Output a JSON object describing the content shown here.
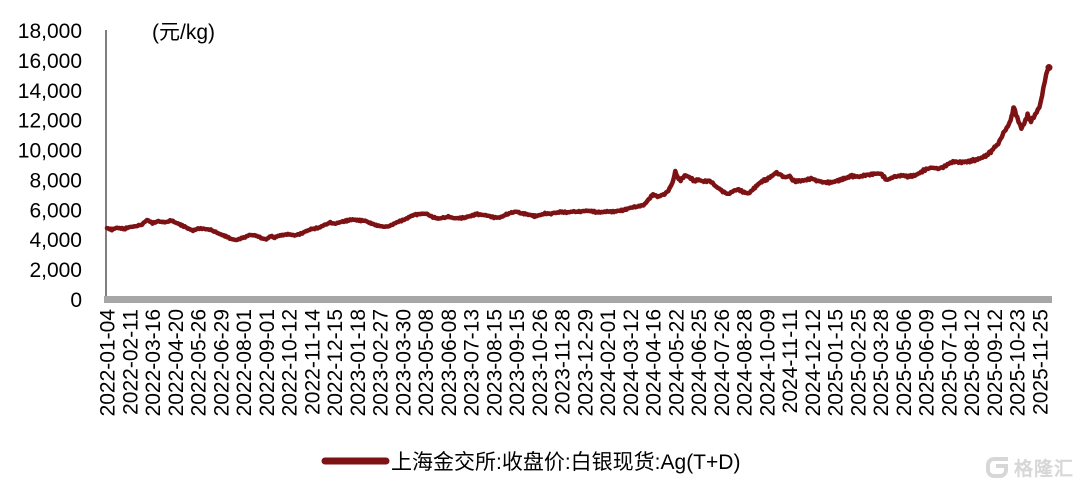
{
  "chart": {
    "unit_label": "(元/kg)",
    "legend": {
      "label": "上海金交所:收盘价:白银现货:Ag(T+D)"
    },
    "watermark_text": "格隆汇",
    "colors": {
      "series": "#7D1214",
      "axis_line": "#7f7f7f",
      "axis_bar": "#a6a6a6",
      "text": "#000000",
      "watermark": "#d7d7d7"
    }
  },
  "chart_data": {
    "type": "line",
    "title": "",
    "xlabel": "",
    "ylabel": "(元/kg)",
    "ylim": [
      0,
      18000
    ],
    "grid": false,
    "legend_position": "bottom-center",
    "y_ticks": [
      0,
      2000,
      4000,
      6000,
      8000,
      10000,
      12000,
      14000,
      16000,
      18000
    ],
    "x_tick_labels": [
      "2022-01-04",
      "2022-02-11",
      "2022-03-16",
      "2022-04-20",
      "2022-05-26",
      "2022-06-29",
      "2022-08-01",
      "2022-09-01",
      "2022-10-12",
      "2022-11-14",
      "2022-12-15",
      "2023-01-18",
      "2023-02-27",
      "2023-03-30",
      "2023-05-08",
      "2023-06-08",
      "2023-07-13",
      "2023-08-15",
      "2023-09-15",
      "2023-10-26",
      "2023-11-28",
      "2023-12-29",
      "2024-02-01",
      "2024-03-12",
      "2024-04-16",
      "2024-05-22",
      "2024-06-25",
      "2024-07-26",
      "2024-08-28",
      "2024-10-09",
      "2024-11-11",
      "2024-12-12",
      "2025-01-15",
      "2025-02-25",
      "2025-03-28",
      "2025-05-06",
      "2025-06-09",
      "2025-07-10",
      "2025-08-12",
      "2025-09-12",
      "2025-10-23",
      "2025-11-25"
    ],
    "series": [
      {
        "name": "上海金交所:收盘价:白银现货:Ag(T+D)",
        "color": "#7D1214",
        "points": [
          [
            "2022-01-04",
            4780
          ],
          [
            "2022-01-12",
            4680
          ],
          [
            "2022-01-21",
            4800
          ],
          [
            "2022-02-01",
            4720
          ],
          [
            "2022-02-11",
            4840
          ],
          [
            "2022-02-22",
            4940
          ],
          [
            "2022-03-01",
            5030
          ],
          [
            "2022-03-08",
            5320
          ],
          [
            "2022-03-16",
            5120
          ],
          [
            "2022-03-25",
            5240
          ],
          [
            "2022-04-06",
            5160
          ],
          [
            "2022-04-14",
            5300
          ],
          [
            "2022-04-20",
            5160
          ],
          [
            "2022-04-29",
            4990
          ],
          [
            "2022-05-10",
            4760
          ],
          [
            "2022-05-18",
            4600
          ],
          [
            "2022-05-26",
            4760
          ],
          [
            "2022-06-06",
            4720
          ],
          [
            "2022-06-15",
            4640
          ],
          [
            "2022-06-24",
            4460
          ],
          [
            "2022-06-29",
            4360
          ],
          [
            "2022-07-06",
            4240
          ],
          [
            "2022-07-14",
            4060
          ],
          [
            "2022-07-21",
            3980
          ],
          [
            "2022-08-01",
            4140
          ],
          [
            "2022-08-10",
            4330
          ],
          [
            "2022-08-19",
            4270
          ],
          [
            "2022-08-26",
            4100
          ],
          [
            "2022-09-01",
            4030
          ],
          [
            "2022-09-09",
            4240
          ],
          [
            "2022-09-16",
            4140
          ],
          [
            "2022-09-26",
            4300
          ],
          [
            "2022-10-12",
            4360
          ],
          [
            "2022-10-21",
            4300
          ],
          [
            "2022-10-31",
            4440
          ],
          [
            "2022-11-07",
            4600
          ],
          [
            "2022-11-14",
            4720
          ],
          [
            "2022-11-23",
            4800
          ],
          [
            "2022-12-02",
            5010
          ],
          [
            "2022-12-09",
            5140
          ],
          [
            "2022-12-15",
            5080
          ],
          [
            "2022-12-23",
            5160
          ],
          [
            "2023-01-03",
            5280
          ],
          [
            "2023-01-11",
            5360
          ],
          [
            "2023-01-18",
            5320
          ],
          [
            "2023-02-01",
            5260
          ],
          [
            "2023-02-10",
            5100
          ],
          [
            "2023-02-20",
            4980
          ],
          [
            "2023-02-27",
            4920
          ],
          [
            "2023-03-08",
            4860
          ],
          [
            "2023-03-16",
            5020
          ],
          [
            "2023-03-24",
            5200
          ],
          [
            "2023-03-30",
            5320
          ],
          [
            "2023-04-07",
            5440
          ],
          [
            "2023-04-14",
            5600
          ],
          [
            "2023-04-21",
            5680
          ],
          [
            "2023-05-08",
            5750
          ],
          [
            "2023-05-16",
            5560
          ],
          [
            "2023-05-25",
            5420
          ],
          [
            "2023-06-01",
            5470
          ],
          [
            "2023-06-08",
            5530
          ],
          [
            "2023-06-16",
            5460
          ],
          [
            "2023-06-26",
            5430
          ],
          [
            "2023-07-05",
            5500
          ],
          [
            "2023-07-13",
            5600
          ],
          [
            "2023-07-20",
            5720
          ],
          [
            "2023-07-28",
            5680
          ],
          [
            "2023-08-07",
            5590
          ],
          [
            "2023-08-15",
            5510
          ],
          [
            "2023-08-23",
            5470
          ],
          [
            "2023-09-01",
            5680
          ],
          [
            "2023-09-08",
            5800
          ],
          [
            "2023-09-15",
            5880
          ],
          [
            "2023-09-22",
            5790
          ],
          [
            "2023-10-09",
            5650
          ],
          [
            "2023-10-17",
            5580
          ],
          [
            "2023-10-26",
            5640
          ],
          [
            "2023-11-03",
            5760
          ],
          [
            "2023-11-10",
            5720
          ],
          [
            "2023-11-17",
            5800
          ],
          [
            "2023-11-28",
            5870
          ],
          [
            "2023-12-06",
            5810
          ],
          [
            "2023-12-14",
            5900
          ],
          [
            "2023-12-21",
            5860
          ],
          [
            "2023-12-29",
            5950
          ],
          [
            "2024-01-10",
            5890
          ],
          [
            "2024-01-19",
            5830
          ],
          [
            "2024-01-29",
            5890
          ],
          [
            "2024-02-08",
            5870
          ],
          [
            "2024-02-19",
            5930
          ],
          [
            "2024-02-28",
            5990
          ],
          [
            "2024-03-06",
            6060
          ],
          [
            "2024-03-12",
            6150
          ],
          [
            "2024-03-21",
            6220
          ],
          [
            "2024-04-01",
            6310
          ],
          [
            "2024-04-09",
            6680
          ],
          [
            "2024-04-16",
            7030
          ],
          [
            "2024-04-23",
            6880
          ],
          [
            "2024-05-02",
            7000
          ],
          [
            "2024-05-10",
            7260
          ],
          [
            "2024-05-17",
            7840
          ],
          [
            "2024-05-21",
            8540
          ],
          [
            "2024-05-24",
            8200
          ],
          [
            "2024-05-29",
            8000
          ],
          [
            "2024-06-05",
            8330
          ],
          [
            "2024-06-11",
            8200
          ],
          [
            "2024-06-18",
            7940
          ],
          [
            "2024-06-25",
            8030
          ],
          [
            "2024-07-02",
            7900
          ],
          [
            "2024-07-10",
            7960
          ],
          [
            "2024-07-17",
            7640
          ],
          [
            "2024-07-26",
            7300
          ],
          [
            "2024-08-05",
            7030
          ],
          [
            "2024-08-12",
            7250
          ],
          [
            "2024-08-20",
            7360
          ],
          [
            "2024-08-28",
            7180
          ],
          [
            "2024-09-05",
            7070
          ],
          [
            "2024-09-13",
            7380
          ],
          [
            "2024-09-23",
            7700
          ],
          [
            "2024-09-30",
            7910
          ],
          [
            "2024-10-09",
            8030
          ],
          [
            "2024-10-16",
            8260
          ],
          [
            "2024-10-23",
            8490
          ],
          [
            "2024-10-30",
            8290
          ],
          [
            "2024-11-05",
            8180
          ],
          [
            "2024-11-11",
            8250
          ],
          [
            "2024-11-15",
            7980
          ],
          [
            "2024-11-22",
            7910
          ],
          [
            "2024-12-02",
            8000
          ],
          [
            "2024-12-12",
            8080
          ],
          [
            "2024-12-19",
            7940
          ],
          [
            "2024-12-27",
            7870
          ],
          [
            "2025-01-08",
            7810
          ],
          [
            "2025-01-15",
            7900
          ],
          [
            "2025-01-24",
            7980
          ],
          [
            "2025-02-05",
            8160
          ],
          [
            "2025-02-14",
            8280
          ],
          [
            "2025-02-25",
            8210
          ],
          [
            "2025-03-07",
            8300
          ],
          [
            "2025-03-18",
            8410
          ],
          [
            "2025-03-28",
            8450
          ],
          [
            "2025-04-07",
            7980
          ],
          [
            "2025-04-15",
            8140
          ],
          [
            "2025-04-24",
            8260
          ],
          [
            "2025-05-06",
            8290
          ],
          [
            "2025-05-15",
            8230
          ],
          [
            "2025-05-26",
            8360
          ],
          [
            "2025-06-05",
            8640
          ],
          [
            "2025-06-09",
            8700
          ],
          [
            "2025-06-17",
            8830
          ],
          [
            "2025-06-26",
            8780
          ],
          [
            "2025-07-04",
            8910
          ],
          [
            "2025-07-10",
            9080
          ],
          [
            "2025-07-18",
            9250
          ],
          [
            "2025-07-28",
            9160
          ],
          [
            "2025-08-05",
            9230
          ],
          [
            "2025-08-12",
            9300
          ],
          [
            "2025-08-21",
            9390
          ],
          [
            "2025-09-01",
            9660
          ],
          [
            "2025-09-08",
            9940
          ],
          [
            "2025-09-12",
            10200
          ],
          [
            "2025-09-19",
            10440
          ],
          [
            "2025-09-26",
            11000
          ],
          [
            "2025-10-09",
            11800
          ],
          [
            "2025-10-14",
            12400
          ],
          [
            "2025-10-17",
            12880
          ],
          [
            "2025-10-23",
            12130
          ],
          [
            "2025-10-29",
            11440
          ],
          [
            "2025-11-04",
            12000
          ],
          [
            "2025-11-07",
            12340
          ],
          [
            "2025-11-12",
            11910
          ],
          [
            "2025-11-18",
            12360
          ],
          [
            "2025-11-25",
            13000
          ],
          [
            "2025-11-28",
            13700
          ],
          [
            "2025-12-02",
            14540
          ],
          [
            "2025-12-04",
            15100
          ],
          [
            "2025-12-08",
            15520
          ]
        ]
      }
    ]
  }
}
